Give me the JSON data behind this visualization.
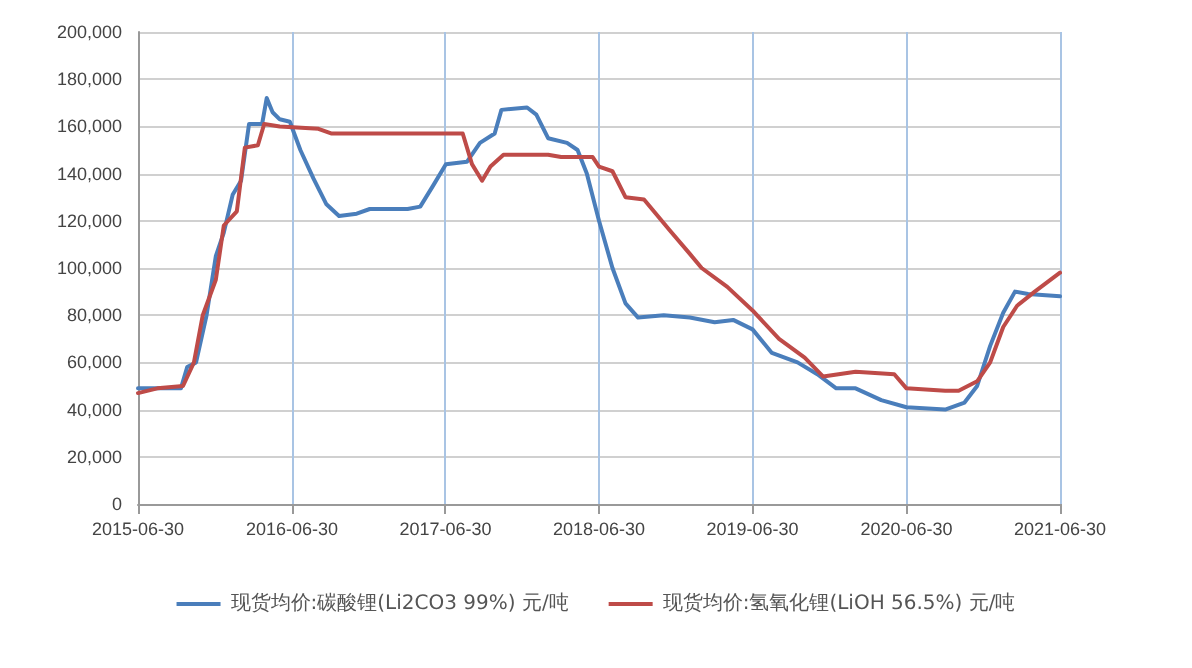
{
  "chart_data": {
    "type": "line",
    "xlim": [
      "2015-06-30",
      "2021-06-30"
    ],
    "xticks": [
      "2015-06-30",
      "2016-06-30",
      "2017-06-30",
      "2018-06-30",
      "2019-06-30",
      "2020-06-30",
      "2021-06-30"
    ],
    "ylim": [
      0,
      200000
    ],
    "yticks": [
      0,
      {
        "value": 20000,
        "label": "20,000"
      },
      {
        "value": 40000,
        "label": "40,000"
      },
      {
        "value": 60000,
        "label": "60,000"
      },
      {
        "value": 80000,
        "label": "80,000"
      },
      {
        "value": 100000,
        "label": "100,000"
      },
      {
        "value": 120000,
        "label": "120,000"
      },
      {
        "value": 140000,
        "label": "140,000"
      },
      {
        "value": 160000,
        "label": "160,000"
      },
      {
        "value": 180000,
        "label": "180,000"
      },
      {
        "value": 200000,
        "label": "200,000"
      }
    ],
    "grid": true,
    "legend": "bottom",
    "marker": "none",
    "line_style": "solid",
    "series": [
      {
        "name": "现货均价:碳酸锂(Li2CO3 99%) 元/吨",
        "color": "#4a7ebb",
        "x": [
          "2015-06-30",
          "2015-10-10",
          "2015-10-25",
          "2015-11-15",
          "2015-12-10",
          "2016-01-01",
          "2016-01-20",
          "2016-02-10",
          "2016-03-01",
          "2016-03-20",
          "2016-04-20",
          "2016-05-01",
          "2016-05-15",
          "2016-06-01",
          "2016-06-25",
          "2016-07-20",
          "2016-08-20",
          "2016-09-20",
          "2016-10-20",
          "2016-12-01",
          "2017-01-01",
          "2017-04-01",
          "2017-05-01",
          "2017-06-01",
          "2017-07-01",
          "2017-08-20",
          "2017-09-20",
          "2017-10-25",
          "2017-11-10",
          "2018-01-10",
          "2018-02-01",
          "2018-03-01",
          "2018-04-15",
          "2018-05-10",
          "2018-06-01",
          "2018-06-30",
          "2018-08-01",
          "2018-09-01",
          "2018-10-01",
          "2018-12-01",
          "2019-02-01",
          "2019-04-01",
          "2019-05-15",
          "2019-06-30",
          "2019-08-15",
          "2019-10-15",
          "2019-12-01",
          "2020-01-15",
          "2020-03-01",
          "2020-05-01",
          "2020-06-30",
          "2020-09-30",
          "2020-11-15",
          "2020-12-15",
          "2021-01-15",
          "2021-02-15",
          "2021-03-15",
          "2021-04-15",
          "2021-06-30"
        ],
        "values": [
          49000,
          49000,
          58000,
          60000,
          80000,
          105000,
          115000,
          131000,
          137000,
          161000,
          161000,
          172000,
          166000,
          163000,
          162000,
          150000,
          138000,
          127000,
          122000,
          123000,
          125000,
          125000,
          126000,
          135000,
          144000,
          145000,
          153000,
          157000,
          167000,
          168000,
          165000,
          155000,
          153000,
          150000,
          140000,
          120000,
          100000,
          85000,
          79000,
          80000,
          79000,
          77000,
          78000,
          74000,
          64000,
          60000,
          55000,
          49000,
          49000,
          44000,
          41000,
          40000,
          43000,
          50000,
          67000,
          81000,
          90000,
          89000,
          88000
        ]
      },
      {
        "name": "现货均价:氢氧化锂(LiOH 56.5%) 元/吨",
        "color": "#be4b48",
        "x": [
          "2015-06-30",
          "2015-08-15",
          "2015-10-15",
          "2015-11-10",
          "2015-12-01",
          "2016-01-01",
          "2016-01-20",
          "2016-02-20",
          "2016-03-10",
          "2016-04-10",
          "2016-04-25",
          "2016-06-01",
          "2016-09-01",
          "2016-10-01",
          "2017-08-10",
          "2017-09-01",
          "2017-09-25",
          "2017-10-15",
          "2017-11-15",
          "2018-03-01",
          "2018-04-01",
          "2018-06-15",
          "2018-06-30",
          "2018-08-01",
          "2018-09-01",
          "2018-10-15",
          "2018-12-15",
          "2019-02-01",
          "2019-03-01",
          "2019-05-01",
          "2019-06-30",
          "2019-09-01",
          "2019-11-01",
          "2019-12-15",
          "2020-03-01",
          "2020-06-01",
          "2020-06-30",
          "2020-09-30",
          "2020-11-01",
          "2020-12-15",
          "2021-01-15",
          "2021-02-15",
          "2021-03-20",
          "2021-05-01",
          "2021-06-30"
        ],
        "values": [
          47000,
          49000,
          50000,
          60000,
          80000,
          95000,
          118000,
          124000,
          151000,
          152000,
          161000,
          160000,
          159000,
          157000,
          157000,
          144000,
          137000,
          143000,
          148000,
          148000,
          147000,
          147000,
          143000,
          141000,
          130000,
          129000,
          116000,
          106000,
          100000,
          92000,
          82000,
          70000,
          62000,
          54000,
          56000,
          55000,
          49000,
          48000,
          48000,
          52000,
          60000,
          75000,
          84000,
          90000,
          98000
        ]
      }
    ]
  }
}
